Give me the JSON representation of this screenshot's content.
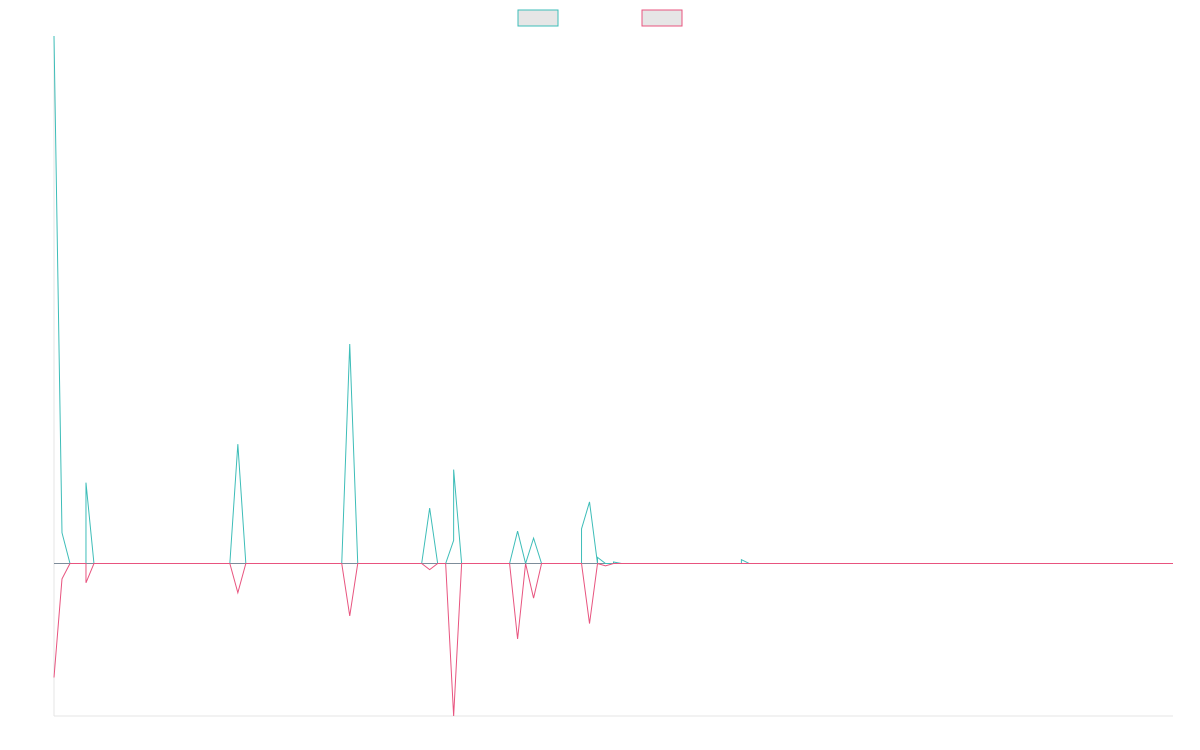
{
  "chart_data": {
    "type": "line",
    "title": "",
    "xlabel": "",
    "ylabel": "",
    "grid": false,
    "legend": "top-center",
    "x": [
      0,
      1,
      2,
      3,
      4,
      5,
      6,
      7,
      8,
      9,
      10,
      11,
      12,
      13,
      14,
      15,
      16,
      17,
      18,
      19,
      20,
      21,
      22,
      23,
      24,
      25,
      26,
      27,
      28,
      29,
      30,
      31,
      32,
      33,
      34,
      35,
      36,
      37,
      38,
      39,
      40,
      41,
      42,
      43,
      44,
      45,
      46,
      47,
      48,
      49,
      50,
      51,
      52,
      53,
      54,
      55,
      56,
      57,
      58,
      59,
      60,
      61,
      62,
      63,
      64,
      65,
      66,
      67,
      68,
      69,
      70,
      71,
      72,
      73,
      74,
      75,
      76,
      77,
      78,
      79,
      80,
      81,
      82,
      83,
      84,
      85,
      86,
      87,
      88,
      89,
      90,
      91,
      92,
      93,
      94,
      95,
      96,
      97,
      98,
      99,
      100,
      101,
      102,
      103,
      104,
      105,
      106,
      107,
      108,
      109,
      110,
      111,
      112,
      113,
      114,
      115,
      116,
      117,
      118,
      119,
      120,
      121,
      122,
      123,
      124,
      125,
      126,
      127,
      128,
      129,
      130,
      131,
      132,
      133,
      134,
      135,
      136,
      137,
      138,
      139,
      140
    ],
    "xlim": [
      0,
      140
    ],
    "ylim": [
      -198,
      685
    ],
    "series": [
      {
        "color": "#3dbdb8",
        "points": [
          [
            0,
            685
          ],
          [
            1,
            40
          ],
          [
            2,
            0
          ],
          [
            4,
            0
          ],
          [
            4,
            105
          ],
          [
            5,
            0
          ],
          [
            22,
            0
          ],
          [
            23,
            155
          ],
          [
            24,
            0
          ],
          [
            36,
            0
          ],
          [
            37,
            285
          ],
          [
            38,
            0
          ],
          [
            46,
            0
          ],
          [
            47,
            72
          ],
          [
            48,
            0
          ],
          [
            49,
            0
          ],
          [
            50,
            30
          ],
          [
            50,
            122
          ],
          [
            51,
            0
          ],
          [
            57,
            0
          ],
          [
            58,
            42
          ],
          [
            59,
            0
          ],
          [
            60,
            33
          ],
          [
            61,
            0
          ],
          [
            66,
            0
          ],
          [
            66,
            45
          ],
          [
            67,
            80
          ],
          [
            68,
            0
          ],
          [
            68,
            8
          ],
          [
            69,
            0
          ],
          [
            70,
            0
          ],
          [
            70,
            2
          ],
          [
            71,
            0
          ],
          [
            86,
            0
          ],
          [
            86,
            5
          ],
          [
            87,
            0
          ],
          [
            140,
            0
          ]
        ]
      },
      {
        "color": "#e8547f",
        "points": [
          [
            0,
            -148
          ],
          [
            1,
            -20
          ],
          [
            2,
            0
          ],
          [
            4,
            0
          ],
          [
            4,
            -25
          ],
          [
            5,
            0
          ],
          [
            22,
            0
          ],
          [
            23,
            -38
          ],
          [
            24,
            0
          ],
          [
            36,
            0
          ],
          [
            37,
            -68
          ],
          [
            38,
            0
          ],
          [
            46,
            0
          ],
          [
            47,
            -8
          ],
          [
            48,
            0
          ],
          [
            49,
            0
          ],
          [
            50,
            -198
          ],
          [
            51,
            0
          ],
          [
            57,
            0
          ],
          [
            58,
            -98
          ],
          [
            59,
            0
          ],
          [
            60,
            -45
          ],
          [
            61,
            0
          ],
          [
            66,
            0
          ],
          [
            67,
            -78
          ],
          [
            68,
            0
          ],
          [
            69,
            -3
          ],
          [
            70,
            0
          ],
          [
            71,
            0
          ],
          [
            87,
            0
          ],
          [
            140,
            0
          ]
        ]
      }
    ]
  }
}
